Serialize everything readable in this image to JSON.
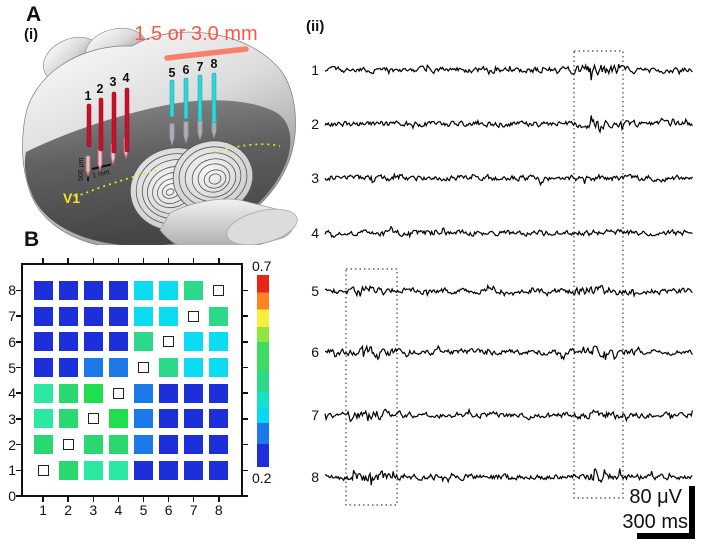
{
  "figure": {
    "panelA_label": "A",
    "panelAi_label": "(i)",
    "panelAii_label": "(ii)",
    "panelB_label": "B"
  },
  "panelAi": {
    "distance_label": "1.5 or 3.0 mm",
    "distance_color": "#f95948",
    "bar_color": "#f8806b",
    "region_label": "V1",
    "region_color": "#f0e62a",
    "scale_500um_label": "500 μm",
    "scale_1mm_label": "1 mm",
    "red_electrode_labels": [
      "1",
      "2",
      "3",
      "4"
    ],
    "cyan_electrode_labels": [
      "5",
      "6",
      "7",
      "8"
    ],
    "red_electrode_color": "#c8102e",
    "cyan_electrode_color": "#2fd6dc"
  },
  "panelAii": {
    "channel_labels": [
      "1",
      "2",
      "3",
      "4",
      "5",
      "6",
      "7",
      "8"
    ],
    "scalebar_voltage_label": "80 μV",
    "scalebar_time_label": "300 ms",
    "trace_color": "#000000"
  },
  "panelB": {
    "x_axis_labels": [
      "1",
      "2",
      "3",
      "4",
      "5",
      "6",
      "7",
      "8"
    ],
    "y_axis_labels_top_to_bottom": [
      "8",
      "7",
      "6",
      "5",
      "4",
      "3",
      "2",
      "1",
      "0"
    ],
    "colorbar_max_label": "0.7",
    "colorbar_min_label": "0.2",
    "colorbar_stops": [
      {
        "color": "#e82317",
        "to": 9
      },
      {
        "color": "#fd8424",
        "to": 18
      },
      {
        "color": "#f5ee3c",
        "to": 27
      },
      {
        "color": "#8ee63f",
        "to": 35
      },
      {
        "color": "#3ddb63",
        "to": 50
      },
      {
        "color": "#2cd98a",
        "to": 61
      },
      {
        "color": "#15e2c8",
        "to": 69
      },
      {
        "color": "#0bd7f5",
        "to": 77
      },
      {
        "color": "#1b79e8",
        "to": 88
      },
      {
        "color": "#1c2fd9",
        "to": 100
      }
    ]
  },
  "chart_data": {
    "type": "heatmap",
    "title": "",
    "xlabel": "",
    "ylabel": "",
    "x_categories": [
      1,
      2,
      3,
      4,
      5,
      6,
      7,
      8
    ],
    "y_categories": [
      1,
      2,
      3,
      4,
      5,
      6,
      7,
      8
    ],
    "colorbar_range": [
      0.2,
      0.7
    ],
    "diagonal_marker": "small open square (self-comparison)",
    "palette": {
      "B": {
        "hex": "#1c2fd9",
        "value": 0.21
      },
      "M": {
        "hex": "#1b79e8",
        "value": 0.26
      },
      "C": {
        "hex": "#0bdcf2",
        "value": 0.31
      },
      "S": {
        "hex": "#2cd98a",
        "value": 0.38
      },
      "T": {
        "hex": "#2de8a2",
        "value": 0.37
      },
      "G": {
        "hex": "#29d970",
        "value": 0.4
      },
      "L": {
        "hex": "#1fdf4f",
        "value": 0.44
      },
      "X": {
        "hex": null,
        "value": null
      }
    },
    "rows_top_to_bottom": [
      8,
      7,
      6,
      5,
      4,
      3,
      2,
      1
    ],
    "matrix_tokens": [
      [
        "B",
        "B",
        "B",
        "B",
        "C",
        "C",
        "S",
        "X"
      ],
      [
        "B",
        "B",
        "B",
        "B",
        "C",
        "C",
        "X",
        "S"
      ],
      [
        "B",
        "B",
        "B",
        "B",
        "S",
        "X",
        "C",
        "C"
      ],
      [
        "B",
        "B",
        "M",
        "M",
        "X",
        "S",
        "C",
        "C"
      ],
      [
        "T",
        "G",
        "L",
        "X",
        "M",
        "B",
        "B",
        "B"
      ],
      [
        "T",
        "G",
        "X",
        "L",
        "M",
        "B",
        "B",
        "B"
      ],
      [
        "G",
        "X",
        "G",
        "G",
        "M",
        "B",
        "B",
        "B"
      ],
      [
        "X",
        "G",
        "T",
        "T",
        "B",
        "B",
        "B",
        "B"
      ]
    ]
  }
}
